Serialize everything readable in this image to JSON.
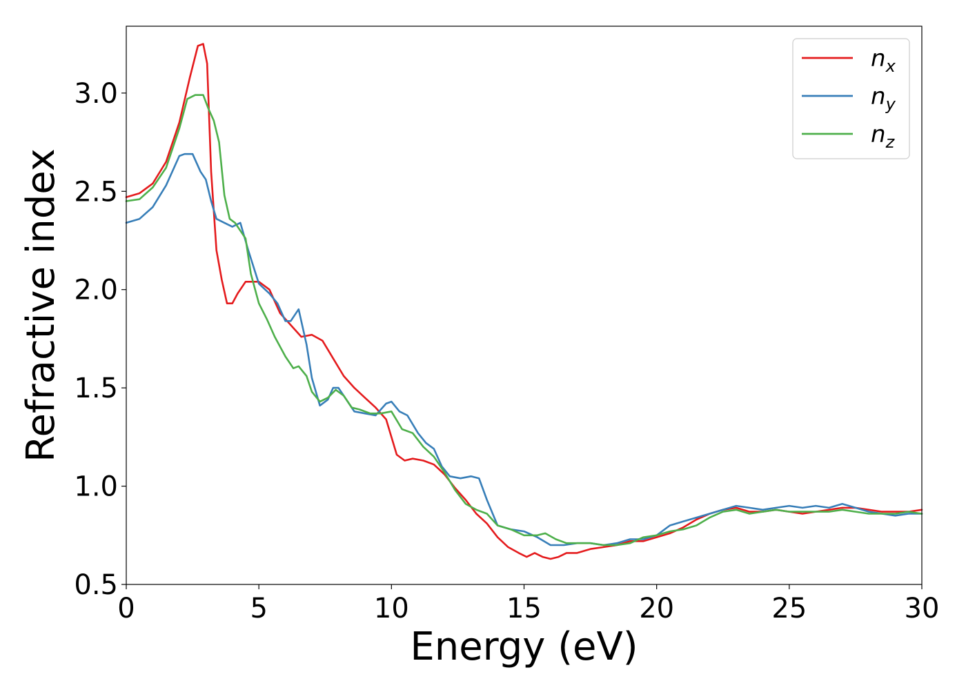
{
  "chart_data": {
    "type": "line",
    "xlabel": "Energy (eV)",
    "ylabel": "Refractive index",
    "xlim": [
      0,
      30
    ],
    "ylim": [
      0.5,
      3.34
    ],
    "xticks": [
      0,
      5,
      10,
      15,
      20,
      25,
      30
    ],
    "xtick_labels": [
      "0",
      "5",
      "10",
      "15",
      "20",
      "25",
      "30"
    ],
    "yticks": [
      0.5,
      1.0,
      1.5,
      2.0,
      2.5,
      3.0
    ],
    "ytick_labels": [
      "0.5",
      "1.0",
      "1.5",
      "2.0",
      "2.5",
      "3.0"
    ],
    "grid": false,
    "legend_position": "top-right",
    "series": [
      {
        "name": "n",
        "subscript": "x",
        "color": "#e41a1c",
        "x": [
          0,
          0.5,
          1.0,
          1.5,
          2.0,
          2.4,
          2.7,
          2.9,
          3.05,
          3.2,
          3.4,
          3.6,
          3.8,
          4.0,
          4.2,
          4.5,
          5.0,
          5.4,
          5.8,
          6.2,
          6.6,
          7.0,
          7.4,
          7.8,
          8.2,
          8.6,
          9.0,
          9.4,
          9.8,
          10.2,
          10.5,
          10.8,
          11.2,
          11.6,
          12.0,
          12.4,
          12.8,
          13.2,
          13.6,
          14.0,
          14.4,
          14.8,
          15.1,
          15.4,
          15.7,
          16.0,
          16.3,
          16.6,
          17.0,
          17.5,
          18.0,
          18.5,
          19.0,
          19.5,
          20.0,
          20.5,
          21.0,
          21.5,
          22.0,
          22.5,
          23.0,
          23.5,
          24.0,
          24.5,
          25.0,
          25.5,
          26.0,
          26.5,
          27.0,
          27.5,
          28.0,
          28.5,
          29.0,
          29.5,
          30.0
        ],
        "y": [
          2.47,
          2.49,
          2.54,
          2.65,
          2.85,
          3.08,
          3.24,
          3.25,
          3.15,
          2.6,
          2.2,
          2.05,
          1.93,
          1.93,
          1.98,
          2.04,
          2.04,
          2.0,
          1.88,
          1.82,
          1.76,
          1.77,
          1.74,
          1.65,
          1.56,
          1.5,
          1.45,
          1.4,
          1.34,
          1.16,
          1.13,
          1.14,
          1.13,
          1.11,
          1.06,
          0.99,
          0.93,
          0.86,
          0.81,
          0.74,
          0.69,
          0.66,
          0.64,
          0.66,
          0.64,
          0.63,
          0.64,
          0.66,
          0.66,
          0.68,
          0.69,
          0.7,
          0.72,
          0.72,
          0.74,
          0.76,
          0.79,
          0.83,
          0.86,
          0.88,
          0.89,
          0.87,
          0.87,
          0.88,
          0.87,
          0.86,
          0.87,
          0.88,
          0.89,
          0.89,
          0.88,
          0.87,
          0.87,
          0.87,
          0.88
        ]
      },
      {
        "name": "n",
        "subscript": "y",
        "color": "#377eb8",
        "x": [
          0,
          0.5,
          1.0,
          1.5,
          2.0,
          2.2,
          2.5,
          2.8,
          3.0,
          3.2,
          3.4,
          3.7,
          4.0,
          4.3,
          4.6,
          5.0,
          5.4,
          5.7,
          6.0,
          6.2,
          6.5,
          6.8,
          7.0,
          7.3,
          7.6,
          7.8,
          8.0,
          8.3,
          8.6,
          9.0,
          9.4,
          9.8,
          10.0,
          10.3,
          10.6,
          11.0,
          11.3,
          11.6,
          11.9,
          12.2,
          12.6,
          13.0,
          13.3,
          13.6,
          14.0,
          14.5,
          15.0,
          15.5,
          16.0,
          16.5,
          17.0,
          17.5,
          18.0,
          18.5,
          19.0,
          19.5,
          20.0,
          20.5,
          21.0,
          21.5,
          22.0,
          22.5,
          23.0,
          23.5,
          24.0,
          24.5,
          25.0,
          25.5,
          26.0,
          26.5,
          27.0,
          27.5,
          28.0,
          28.5,
          29.0,
          29.5,
          30.0
        ],
        "y": [
          2.34,
          2.36,
          2.42,
          2.53,
          2.68,
          2.69,
          2.69,
          2.6,
          2.56,
          2.45,
          2.36,
          2.34,
          2.32,
          2.34,
          2.2,
          2.03,
          1.98,
          1.93,
          1.84,
          1.84,
          1.9,
          1.72,
          1.55,
          1.41,
          1.44,
          1.5,
          1.5,
          1.44,
          1.38,
          1.37,
          1.36,
          1.42,
          1.43,
          1.38,
          1.36,
          1.27,
          1.22,
          1.19,
          1.1,
          1.05,
          1.04,
          1.05,
          1.04,
          0.93,
          0.8,
          0.78,
          0.77,
          0.74,
          0.7,
          0.7,
          0.71,
          0.71,
          0.7,
          0.71,
          0.73,
          0.73,
          0.75,
          0.8,
          0.82,
          0.84,
          0.86,
          0.88,
          0.9,
          0.89,
          0.88,
          0.89,
          0.9,
          0.89,
          0.9,
          0.89,
          0.91,
          0.89,
          0.87,
          0.86,
          0.85,
          0.86,
          0.86
        ]
      },
      {
        "name": "n",
        "subscript": "z",
        "color": "#4daf4a",
        "x": [
          0,
          0.5,
          1.0,
          1.5,
          2.0,
          2.3,
          2.6,
          2.9,
          3.1,
          3.3,
          3.5,
          3.7,
          3.9,
          4.1,
          4.3,
          4.5,
          4.7,
          5.0,
          5.3,
          5.6,
          6.0,
          6.3,
          6.5,
          6.8,
          7.0,
          7.3,
          7.6,
          7.9,
          8.2,
          8.5,
          8.8,
          9.2,
          9.6,
          10.0,
          10.4,
          10.8,
          11.2,
          11.6,
          12.0,
          12.4,
          12.8,
          13.2,
          13.6,
          14.0,
          14.5,
          15.0,
          15.5,
          15.8,
          16.2,
          16.6,
          17.0,
          17.5,
          18.0,
          18.5,
          19.0,
          19.5,
          20.0,
          20.5,
          21.0,
          21.5,
          22.0,
          22.5,
          23.0,
          23.5,
          24.0,
          24.5,
          25.0,
          25.5,
          26.0,
          26.5,
          27.0,
          27.5,
          28.0,
          28.5,
          29.0,
          29.5,
          30.0
        ],
        "y": [
          2.45,
          2.46,
          2.52,
          2.62,
          2.82,
          2.97,
          2.99,
          2.99,
          2.92,
          2.86,
          2.75,
          2.48,
          2.36,
          2.34,
          2.3,
          2.26,
          2.08,
          1.93,
          1.85,
          1.76,
          1.66,
          1.6,
          1.61,
          1.56,
          1.48,
          1.43,
          1.45,
          1.49,
          1.46,
          1.4,
          1.39,
          1.37,
          1.37,
          1.38,
          1.29,
          1.27,
          1.2,
          1.15,
          1.07,
          0.98,
          0.91,
          0.88,
          0.86,
          0.8,
          0.78,
          0.75,
          0.75,
          0.76,
          0.73,
          0.71,
          0.71,
          0.71,
          0.7,
          0.7,
          0.71,
          0.74,
          0.75,
          0.77,
          0.78,
          0.8,
          0.84,
          0.87,
          0.88,
          0.86,
          0.87,
          0.88,
          0.87,
          0.87,
          0.87,
          0.87,
          0.88,
          0.87,
          0.86,
          0.86,
          0.86,
          0.87,
          0.86
        ]
      }
    ]
  }
}
